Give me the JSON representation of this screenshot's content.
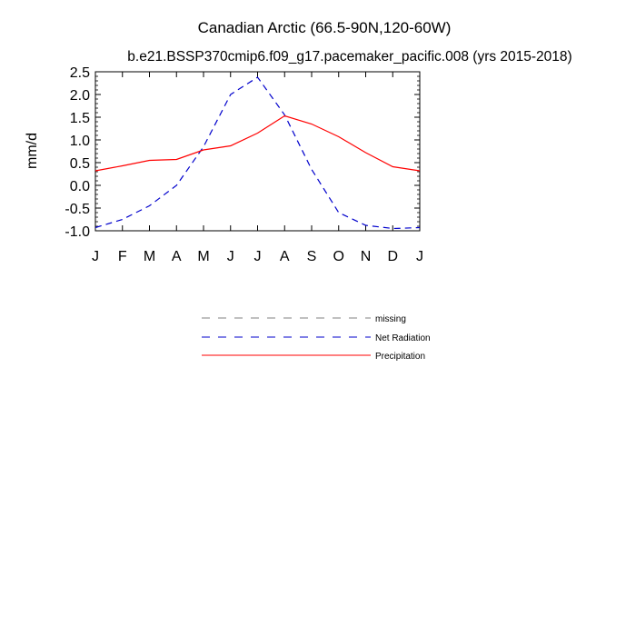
{
  "chart_data": {
    "type": "line",
    "title": "Canadian Arctic (66.5-90N,120-60W)",
    "subtitle": "b.e21.BSSP370cmip6.f09_g17.pacemaker_pacific.008 (yrs 2015-2018)",
    "ylabel": "mm/d",
    "xlabel": "",
    "ylim": [
      -1.0,
      2.5
    ],
    "yticks": [
      "-1.0",
      "-0.5",
      "0.0",
      "0.5",
      "1.0",
      "1.5",
      "2.0",
      "2.5"
    ],
    "categories": [
      "J",
      "F",
      "M",
      "A",
      "M",
      "J",
      "J",
      "A",
      "S",
      "O",
      "N",
      "D",
      "J"
    ],
    "series": [
      {
        "name": "Net Radiation",
        "color": "#0000cc",
        "dash": "dashed",
        "values": [
          -0.93,
          -0.75,
          -0.45,
          0.0,
          0.85,
          2.0,
          2.38,
          1.55,
          0.35,
          -0.6,
          -0.88,
          -0.95,
          -0.93
        ]
      },
      {
        "name": "Precipitation",
        "color": "#ff0000",
        "dash": "solid",
        "values": [
          0.32,
          0.43,
          0.55,
          0.57,
          0.78,
          0.87,
          1.15,
          1.53,
          1.35,
          1.07,
          0.72,
          0.41,
          0.32
        ]
      }
    ],
    "legend": {
      "position": "below-plot",
      "entries": [
        {
          "label": "missing",
          "color": "#808080",
          "dash": "dashed"
        },
        {
          "label": "Net Radiation",
          "color": "#0000cc",
          "dash": "dashed"
        },
        {
          "label": "Precipitation",
          "color": "#ff0000",
          "dash": "solid"
        }
      ]
    },
    "grid": false
  }
}
